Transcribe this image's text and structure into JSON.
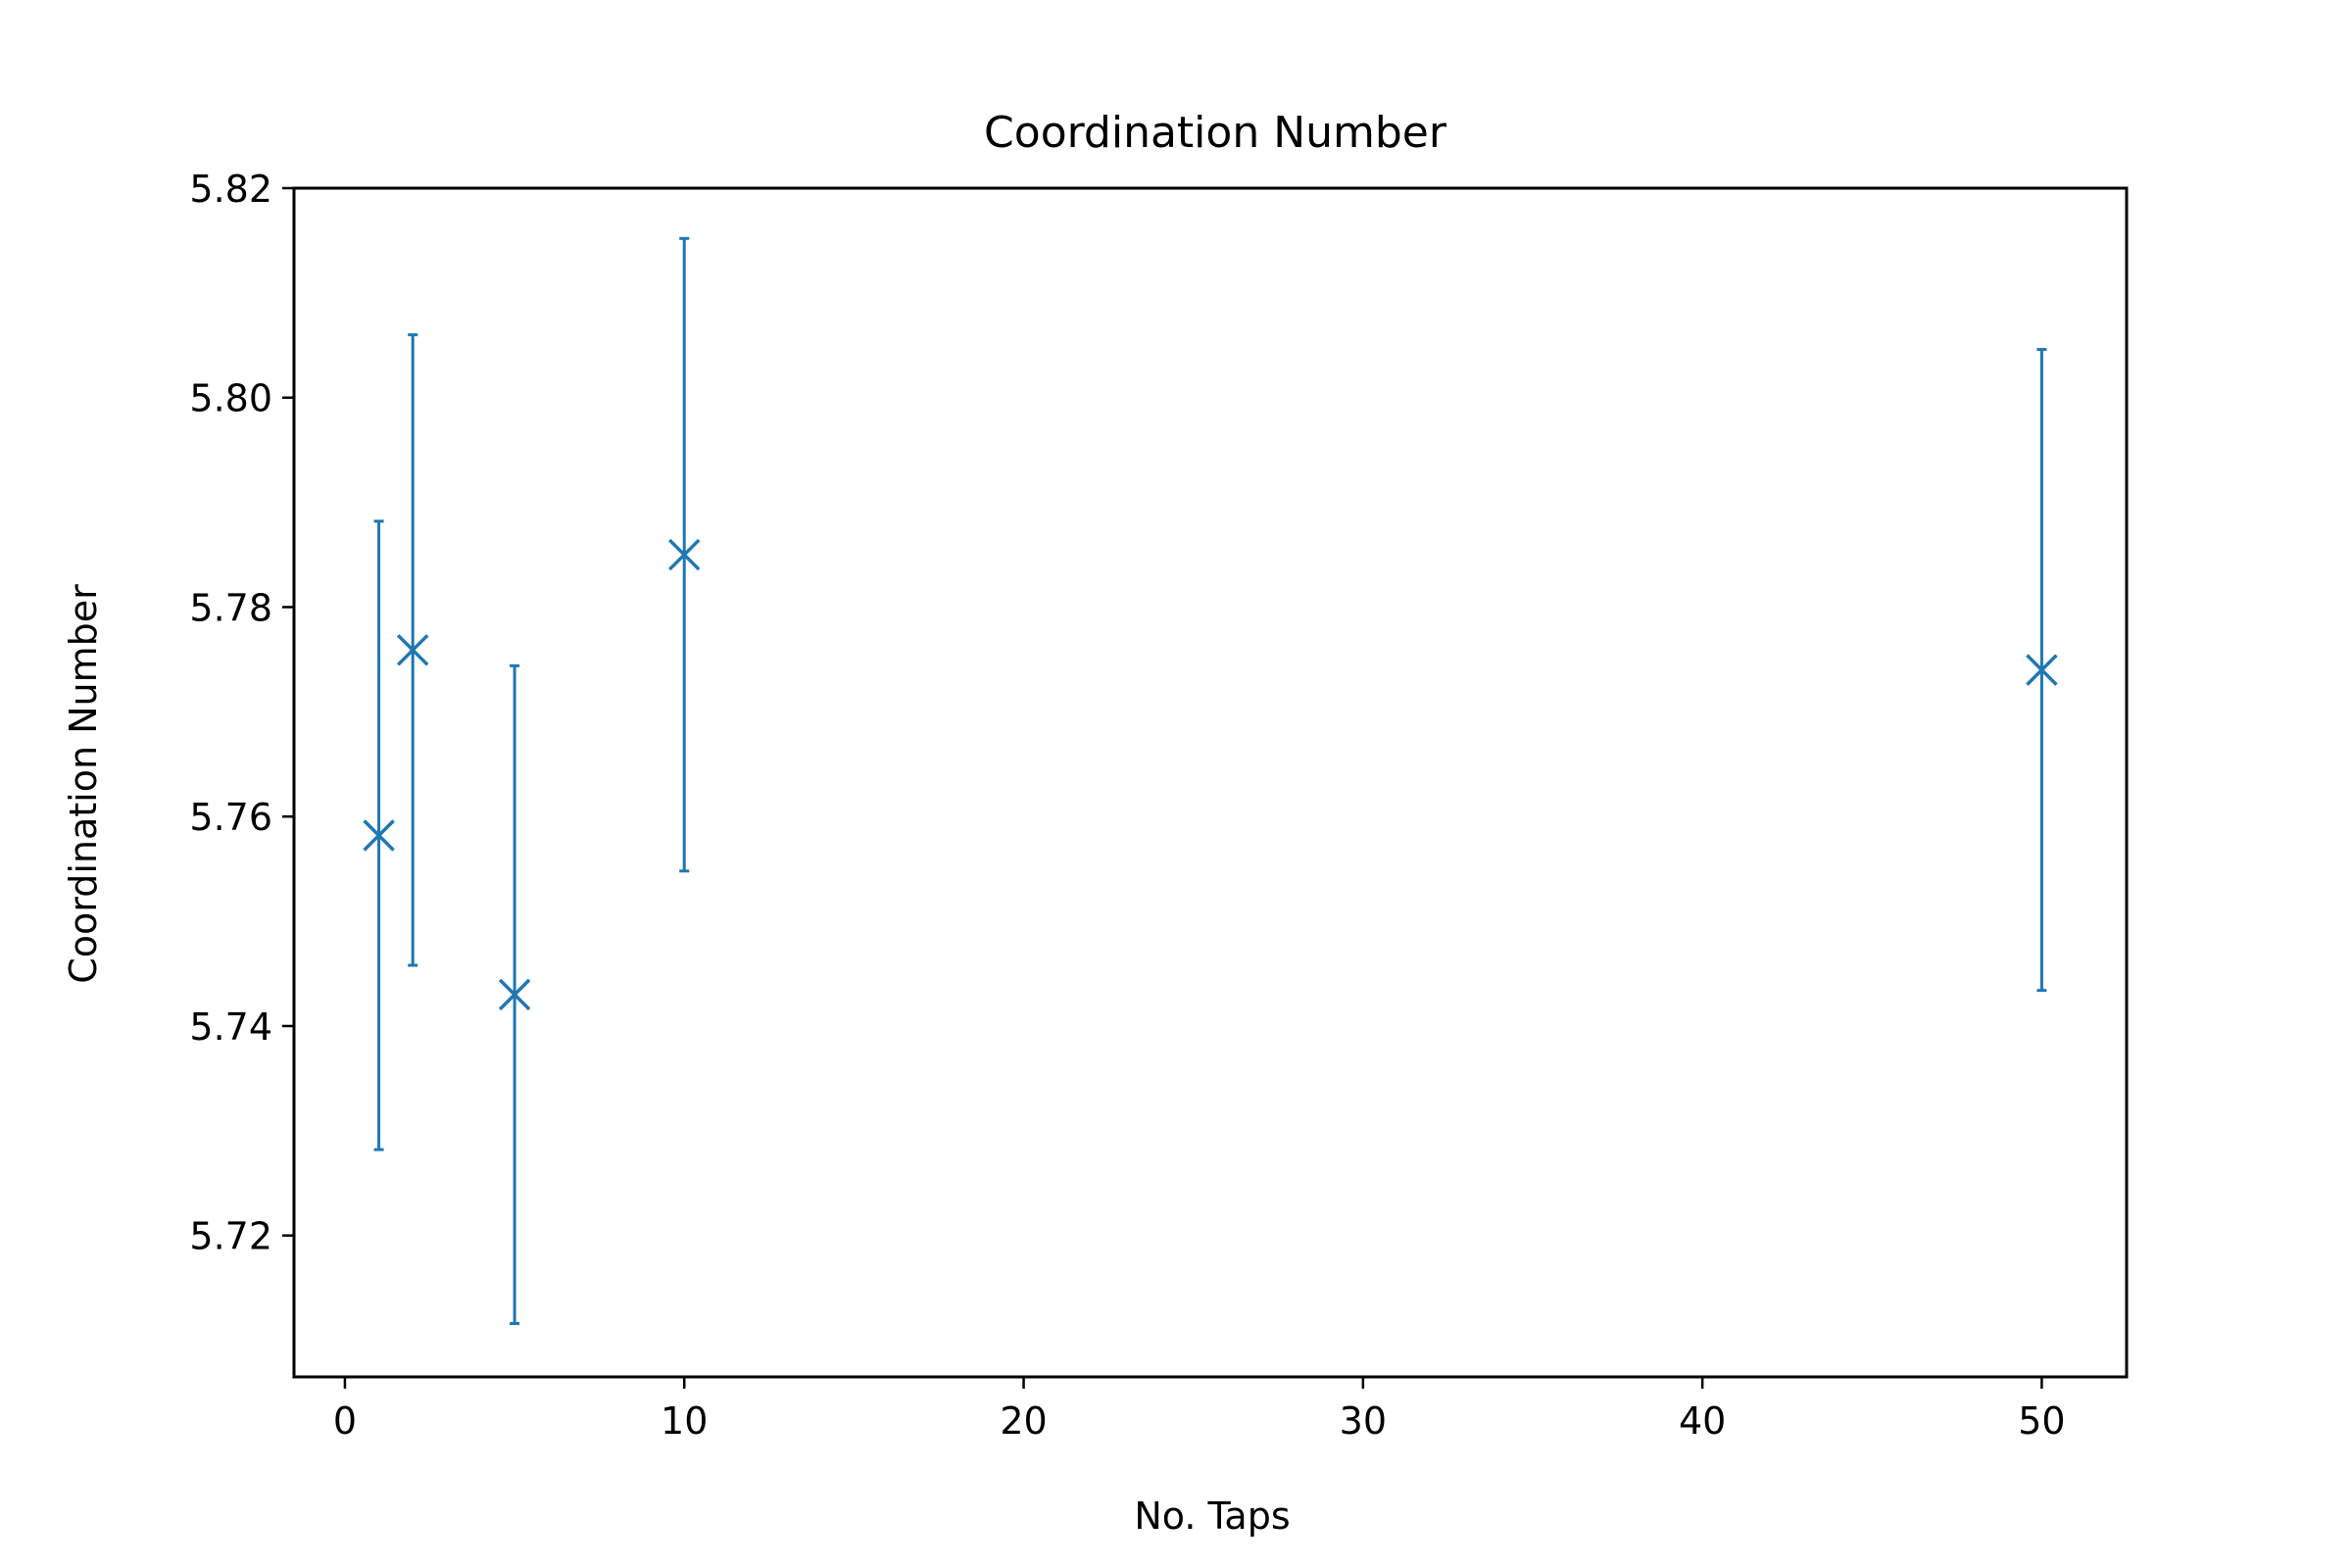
{
  "chart_data": {
    "type": "scatter",
    "title": "Coordination Number",
    "xlabel": "No. Taps",
    "ylabel": "Coordination Number",
    "xlim": [
      -1.5,
      52.5
    ],
    "ylim": [
      5.7065,
      5.82
    ],
    "xticks": [
      0,
      10,
      20,
      30,
      40,
      50
    ],
    "xtick_labels": [
      "0",
      "10",
      "20",
      "30",
      "40",
      "50"
    ],
    "yticks": [
      5.72,
      5.74,
      5.76,
      5.78,
      5.8,
      5.82
    ],
    "ytick_labels": [
      "5.72",
      "5.74",
      "5.76",
      "5.78",
      "5.80",
      "5.82"
    ],
    "grid": false,
    "color": "#1f77b4",
    "marker": "x",
    "series": [
      {
        "points": [
          {
            "x": 1,
            "y": 5.7582,
            "err_low": 5.7282,
            "err_high": 5.7882
          },
          {
            "x": 2,
            "y": 5.7759,
            "err_low": 5.7458,
            "err_high": 5.806
          },
          {
            "x": 5,
            "y": 5.743,
            "err_low": 5.7116,
            "err_high": 5.7744
          },
          {
            "x": 10,
            "y": 5.785,
            "err_low": 5.7548,
            "err_high": 5.8152
          },
          {
            "x": 50,
            "y": 5.774,
            "err_low": 5.7434,
            "err_high": 5.8046
          }
        ]
      }
    ]
  }
}
